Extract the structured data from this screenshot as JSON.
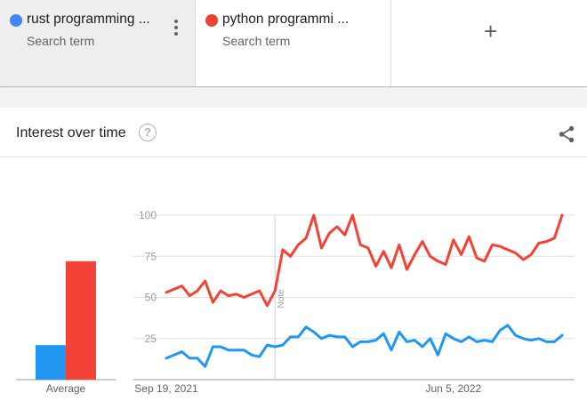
{
  "search_terms": [
    {
      "name": "rust programming ...",
      "sub": "Search term",
      "color": "#4285f4"
    },
    {
      "name": "python programmi ...",
      "sub": "Search term",
      "color": "#ea4335"
    }
  ],
  "add_term": {
    "icon": "plus-icon",
    "symbol": "+"
  },
  "card": {
    "title": "Interest over time",
    "help_symbol": "?",
    "average_label": "Average"
  },
  "colors": {
    "rust": "#2196f3",
    "python": "#f44336",
    "grid": "#e0e0e0"
  },
  "chart_data": {
    "type": "line",
    "title": "Interest over time",
    "y_ticks": [
      25,
      50,
      75,
      100
    ],
    "ylim": [
      0,
      100
    ],
    "x_tick_labels": [
      "Sep 19, 2021",
      "Jun 5, 2022"
    ],
    "x_tick_index": [
      0,
      37
    ],
    "note_label": "Note",
    "note_index": 14,
    "averages": [
      {
        "name": "rust programming ...",
        "value": 21
      },
      {
        "name": "python programmi ...",
        "value": 72
      }
    ],
    "series": [
      {
        "name": "rust programming ...",
        "values": [
          13,
          15,
          17,
          13,
          13,
          8,
          20,
          20,
          18,
          18,
          18,
          15,
          14,
          21,
          20,
          21,
          26,
          26,
          32,
          29,
          25,
          27,
          26,
          26,
          20,
          23,
          23,
          24,
          28,
          18,
          29,
          23,
          24,
          20,
          25,
          15,
          28,
          25,
          23,
          26,
          23,
          24,
          23,
          30,
          33,
          27,
          25,
          24,
          25,
          23,
          23,
          27
        ]
      },
      {
        "name": "python programmi ...",
        "values": [
          53,
          55,
          57,
          51,
          54,
          60,
          47,
          54,
          51,
          52,
          50,
          52,
          54,
          45,
          54,
          79,
          75,
          82,
          86,
          100,
          80,
          89,
          93,
          88,
          100,
          82,
          80,
          69,
          78,
          68,
          82,
          67,
          76,
          84,
          75,
          72,
          70,
          85,
          76,
          87,
          74,
          72,
          82,
          81,
          79,
          77,
          73,
          76,
          83,
          84,
          86,
          100
        ]
      }
    ]
  }
}
